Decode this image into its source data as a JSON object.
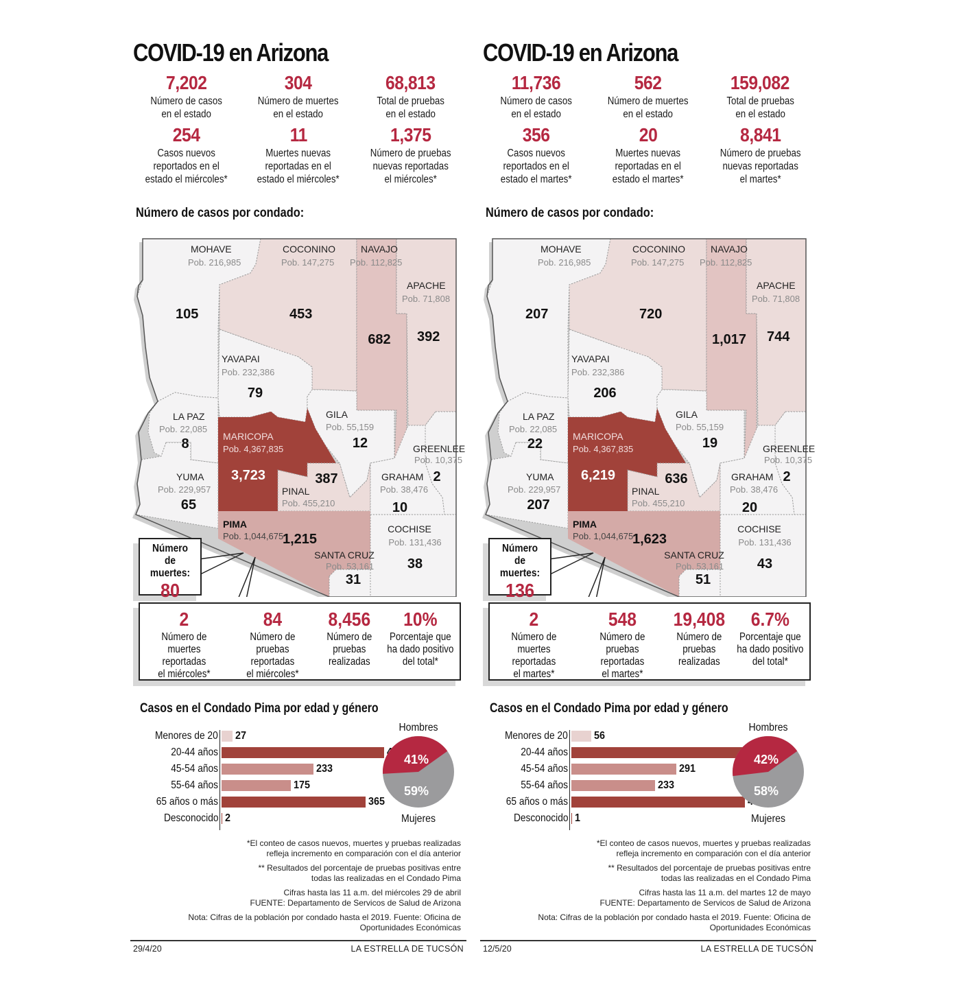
{
  "panels": [
    {
      "title": "COVID-19 en Arizona",
      "state_stats": [
        {
          "value": "7,202",
          "label": "Número de casos\nen el estado"
        },
        {
          "value": "304",
          "label": "Número de muertes\nen el estado"
        },
        {
          "value": "68,813",
          "label": "Total de pruebas\nen el estado"
        },
        {
          "value": "254",
          "label": "Casos nuevos\nreportados en el\nestado el miércoles*"
        },
        {
          "value": "11",
          "label": "Muertes nuevas\nreportadas en el\nestado el miércoles*"
        },
        {
          "value": "1,375",
          "label": "Número de pruebas\nnuevas reportadas\nel miércoles*"
        }
      ],
      "map_title": "Número de casos por condado:",
      "counties": {
        "mohave": {
          "name": "MOHAVE",
          "pop": "Pob. 216,985",
          "cases": "105"
        },
        "coconino": {
          "name": "COCONINO",
          "pop": "Pob. 147,275",
          "cases": "453"
        },
        "navajo": {
          "name": "NAVAJO",
          "pop": "Pob. 112,825",
          "cases": "682"
        },
        "apache": {
          "name": "APACHE",
          "pop": "Pob. 71,808",
          "cases": "392"
        },
        "yavapai": {
          "name": "YAVAPAI",
          "pop": "Pob. 232,386",
          "cases": "79"
        },
        "lapaz": {
          "name": "LA PAZ",
          "pop": "Pob. 22,085",
          "cases": "8"
        },
        "gila": {
          "name": "GILA",
          "pop": "Pob. 55,159",
          "cases": "12"
        },
        "maricopa": {
          "name": "MARICOPA",
          "pop": "Pob. 4,367,835",
          "cases": "3,723"
        },
        "greenlee": {
          "name": "GREENLEE",
          "pop": "Pob. 10,375",
          "cases": "2"
        },
        "yuma": {
          "name": "YUMA",
          "pop": "Pob. 229,957",
          "cases": "65"
        },
        "pinal": {
          "name": "PINAL",
          "pop": "Pob. 455,210",
          "cases": "387"
        },
        "graham": {
          "name": "GRAHAM",
          "pop": "Pob. 38,476",
          "cases": "10"
        },
        "pima": {
          "name": "PIMA",
          "pop": "Pob. 1,044,675",
          "cases": "1,215"
        },
        "cochise": {
          "name": "COCHISE",
          "pop": "Pob. 131,436",
          "cases": "38"
        },
        "santacruz": {
          "name": "SANTA CRUZ",
          "pop": "Pob. 53,161",
          "cases": "31"
        }
      },
      "pima_deaths": {
        "label": "Número\nde muertes:",
        "value": "80"
      },
      "pima_stats": [
        {
          "value": "2",
          "label": "Número de muertes\nreportadas\nel miércoles*"
        },
        {
          "value": "84",
          "label": "Número de pruebas\nreportadas\nel miércoles*"
        },
        {
          "value": "8,456",
          "label": "Número de\npruebas\nrealizadas"
        },
        {
          "value": "10%",
          "label": "Porcentaje que\nha dado positivo\ndel total*"
        }
      ],
      "age_title": "Casos en el Condado Pima por edad y género",
      "age_groups": [
        {
          "label": "Menores de 20",
          "value": "27"
        },
        {
          "label": "20-44 años",
          "value": "413"
        },
        {
          "label": "45-54 años",
          "value": "233"
        },
        {
          "label": "55-64 años",
          "value": "175"
        },
        {
          "label": "65 años o más",
          "value": "365"
        },
        {
          "label": "Desconocido",
          "value": "2"
        }
      ],
      "gender": {
        "men_label": "Hombres",
        "men_pct": "41%",
        "women_label": "Mujeres",
        "women_pct": "59%"
      },
      "notes": [
        "*El conteo de casos nuevos, muertes y pruebas realizadas\nrefleja incremento en comparación con el día anterior",
        "** Resultados del porcentaje de pruebas positivas entre\ntodas las realizadas en el Condado Pima",
        "Cifras hasta las 11 a.m. del miércoles 29 de abril\nFUENTE: Departamento de Servicos de Salud de Arizona",
        "Nota: Cifras de la población por condado hasta el 2019. Fuente: Oficina de\nOportunidades Económicas"
      ],
      "date": "29/4/20",
      "publisher": "LA ESTRELLA DE TUCSÓN"
    },
    {
      "title": "COVID-19 en Arizona",
      "state_stats": [
        {
          "value": "11,736",
          "label": "Número de casos\nen el estado"
        },
        {
          "value": "562",
          "label": "Número de muertes\nen el estado"
        },
        {
          "value": "159,082",
          "label": "Total de pruebas\nen el estado"
        },
        {
          "value": "356",
          "label": "Casos nuevos\nreportados en el\nestado el martes*"
        },
        {
          "value": "20",
          "label": "Muertes nuevas\nreportadas en el\nestado el martes*"
        },
        {
          "value": "8,841",
          "label": "Número de pruebas\nnuevas reportadas\nel martes*"
        }
      ],
      "map_title": "Número de casos por condado:",
      "counties": {
        "mohave": {
          "name": "MOHAVE",
          "pop": "Pob. 216,985",
          "cases": "207"
        },
        "coconino": {
          "name": "COCONINO",
          "pop": "Pob. 147,275",
          "cases": "720"
        },
        "navajo": {
          "name": "NAVAJO",
          "pop": "Pob. 112,825",
          "cases": "1,017"
        },
        "apache": {
          "name": "APACHE",
          "pop": "Pob. 71,808",
          "cases": "744"
        },
        "yavapai": {
          "name": "YAVAPAI",
          "pop": "Pob. 232,386",
          "cases": "206"
        },
        "lapaz": {
          "name": "LA PAZ",
          "pop": "Pob. 22,085",
          "cases": "22"
        },
        "gila": {
          "name": "GILA",
          "pop": "Pob. 55,159",
          "cases": "19"
        },
        "maricopa": {
          "name": "MARICOPA",
          "pop": "Pob. 4,367,835",
          "cases": "6,219"
        },
        "greenlee": {
          "name": "GREENLEE",
          "pop": "Pob. 10,375",
          "cases": "2"
        },
        "yuma": {
          "name": "YUMA",
          "pop": "Pob. 229,957",
          "cases": "207"
        },
        "pinal": {
          "name": "PINAL",
          "pop": "Pob. 455,210",
          "cases": "636"
        },
        "graham": {
          "name": "GRAHAM",
          "pop": "Pob. 38,476",
          "cases": "20"
        },
        "pima": {
          "name": "PIMA",
          "pop": "Pob. 1,044,675",
          "cases": "1,623"
        },
        "cochise": {
          "name": "COCHISE",
          "pop": "Pob. 131,436",
          "cases": "43"
        },
        "santacruz": {
          "name": "SANTA CRUZ",
          "pop": "Pob. 53,161",
          "cases": "51"
        }
      },
      "pima_deaths": {
        "label": "Número\nde muertes:",
        "value": "136"
      },
      "pima_stats": [
        {
          "value": "2",
          "label": "Número de muertes\nreportadas\nel martes*"
        },
        {
          "value": "548",
          "label": "Número de pruebas\nreportadas\nel martes*"
        },
        {
          "value": "19,408",
          "label": "Número de\npruebas\nrealizadas"
        },
        {
          "value": "6.7%",
          "label": "Porcentaje que\nha dado positivo\ndel total*"
        }
      ],
      "age_title": "Casos en el Condado Pima por edad y género",
      "age_groups": [
        {
          "label": "Menores de 20",
          "value": "56"
        },
        {
          "label": "20-44 años",
          "value": "560"
        },
        {
          "label": "45-54 años",
          "value": "291"
        },
        {
          "label": "55-64 años",
          "value": "233"
        },
        {
          "label": "65 años o más",
          "value": "482"
        },
        {
          "label": "Desconocido",
          "value": "1"
        }
      ],
      "gender": {
        "men_label": "Hombres",
        "men_pct": "42%",
        "women_label": "Mujeres",
        "women_pct": "58%"
      },
      "notes": [
        "*El conteo de casos nuevos, muertes y pruebas realizadas\nrefleja incremento en comparación con el día anterior",
        "** Resultados del porcentaje de pruebas positivas entre\ntodas las realizadas en el Condado Pima",
        "Cifras hasta las 11 a.m. del martes 12 de mayo\nFUENTE: Departamento de Servicos de Salud de Arizona",
        "Nota: Cifras de la población por condado hasta el 2019. Fuente: Oficina de\nOportunidades Económicas"
      ],
      "date": "12/5/20",
      "publisher": "LA ESTRELLA DE TUCSÓN"
    }
  ],
  "colors": {
    "accent_red": "#b52841",
    "maricopa_fill": "#a1423a",
    "pima_fill": "#d4aaa7",
    "navajo_fill": "#e2c4c2",
    "light_fill": "#ecdcda",
    "pale_fill": "#f4f3f4",
    "bar_dark": "#a1423a",
    "bar_mid": "#c98e8a",
    "bar_light": "#e8d2d0",
    "pie_men": "#b52841",
    "pie_women": "#9b9b9d"
  },
  "chart_data": [
    {
      "type": "bar",
      "title": "Casos en el Condado Pima por edad y género (29/4/20)",
      "orientation": "horizontal",
      "categories": [
        "Menores de 20",
        "20-44 años",
        "45-54 años",
        "55-64 años",
        "65 años o más",
        "Desconocido"
      ],
      "values": [
        27,
        413,
        233,
        175,
        365,
        2
      ],
      "pie": {
        "labels": [
          "Hombres",
          "Mujeres"
        ],
        "values": [
          41,
          59
        ]
      }
    },
    {
      "type": "bar",
      "title": "Casos en el Condado Pima por edad y género (12/5/20)",
      "orientation": "horizontal",
      "categories": [
        "Menores de 20",
        "20-44 años",
        "45-54 años",
        "55-64 años",
        "65 años o más",
        "Desconocido"
      ],
      "values": [
        56,
        560,
        291,
        233,
        482,
        1
      ],
      "pie": {
        "labels": [
          "Hombres",
          "Mujeres"
        ],
        "values": [
          42,
          58
        ]
      }
    },
    {
      "type": "table",
      "title": "Número de casos por condado",
      "columns": [
        "Condado",
        "Población",
        "Casos 29/4/20",
        "Casos 12/5/20"
      ],
      "rows": [
        [
          "Mohave",
          216985,
          105,
          207
        ],
        [
          "Coconino",
          147275,
          453,
          720
        ],
        [
          "Navajo",
          112825,
          682,
          1017
        ],
        [
          "Apache",
          71808,
          392,
          744
        ],
        [
          "Yavapai",
          232386,
          79,
          206
        ],
        [
          "La Paz",
          22085,
          8,
          22
        ],
        [
          "Gila",
          55159,
          12,
          19
        ],
        [
          "Maricopa",
          4367835,
          3723,
          6219
        ],
        [
          "Greenlee",
          10375,
          2,
          2
        ],
        [
          "Yuma",
          229957,
          65,
          207
        ],
        [
          "Pinal",
          455210,
          387,
          636
        ],
        [
          "Graham",
          38476,
          10,
          20
        ],
        [
          "Pima",
          1044675,
          1215,
          1623
        ],
        [
          "Cochise",
          131436,
          38,
          43
        ],
        [
          "Santa Cruz",
          53161,
          31,
          51
        ]
      ]
    }
  ]
}
